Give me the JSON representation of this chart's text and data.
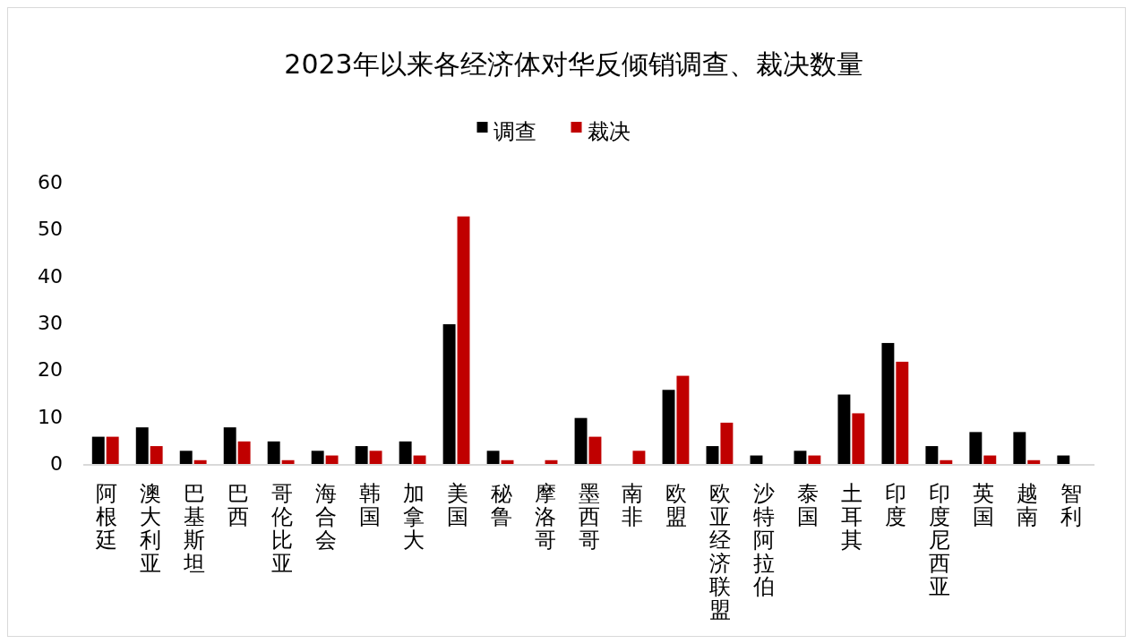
{
  "chart_data": {
    "type": "bar",
    "title": "2023年以来各经济体对华反倾销调查、裁决数量",
    "categories": [
      "阿根廷",
      "澳大利亚",
      "巴基斯坦",
      "巴西",
      "哥伦比亚",
      "海合会",
      "韩国",
      "加拿大",
      "美国",
      "秘鲁",
      "摩洛哥",
      "墨西哥",
      "南非",
      "欧盟",
      "欧亚经济联盟",
      "沙特阿拉伯",
      "泰国",
      "土耳其",
      "印度",
      "印度尼西亚",
      "英国",
      "越南",
      "智利"
    ],
    "series": [
      {
        "name": "调查",
        "color": "#000000",
        "values": [
          6,
          8,
          3,
          8,
          5,
          3,
          4,
          5,
          30,
          3,
          0,
          10,
          0,
          16,
          4,
          2,
          3,
          15,
          26,
          4,
          7,
          7,
          2
        ]
      },
      {
        "name": "裁决",
        "color": "#c00000",
        "values": [
          6,
          4,
          1,
          5,
          1,
          2,
          3,
          2,
          53,
          1,
          1,
          6,
          3,
          19,
          9,
          0,
          2,
          11,
          22,
          1,
          2,
          1,
          0
        ]
      }
    ],
    "ylim": [
      0,
      60
    ],
    "yticks": [
      0,
      10,
      20,
      30,
      40,
      50,
      60
    ],
    "grid": false,
    "legend": "top"
  }
}
